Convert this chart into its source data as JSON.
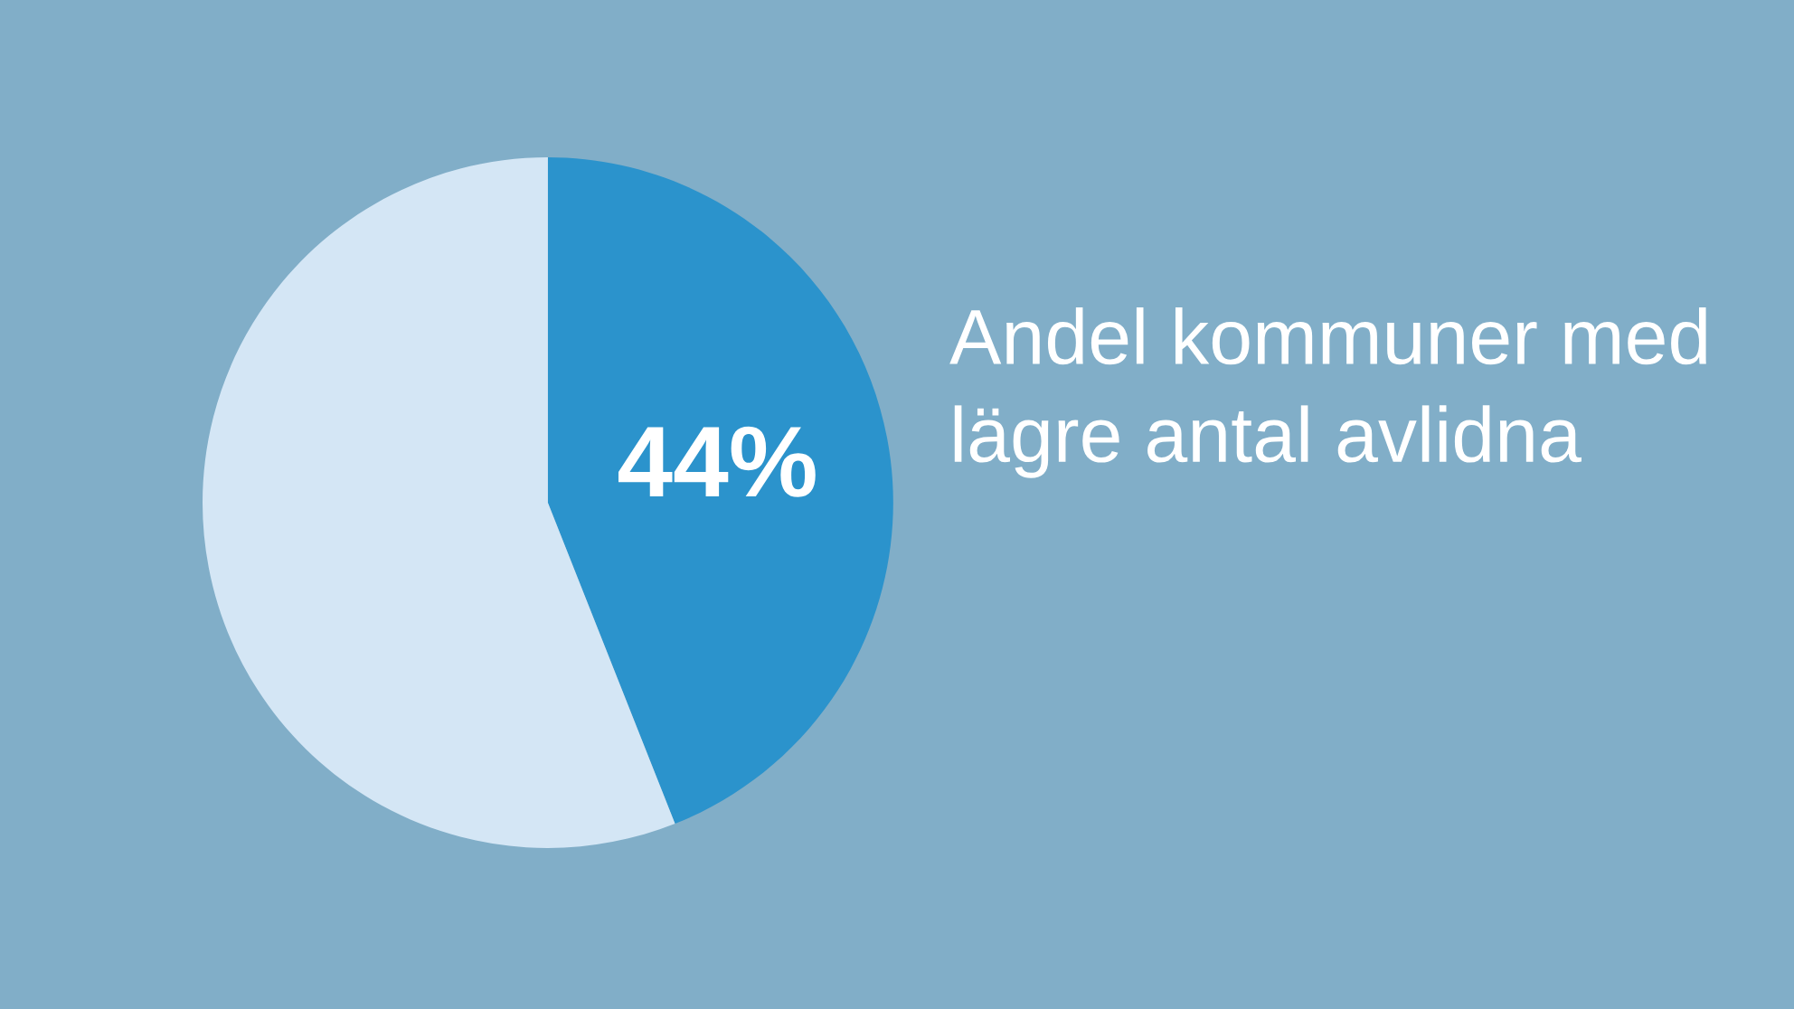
{
  "chart_data": {
    "type": "pie",
    "title": "Andel kommuner med lägre antal avlidna",
    "categories": [
      null,
      null
    ],
    "values": [
      44,
      56
    ],
    "colors": [
      "#2b93cc",
      "#d4e6f5"
    ],
    "value_labels": [
      "44%",
      null
    ]
  }
}
